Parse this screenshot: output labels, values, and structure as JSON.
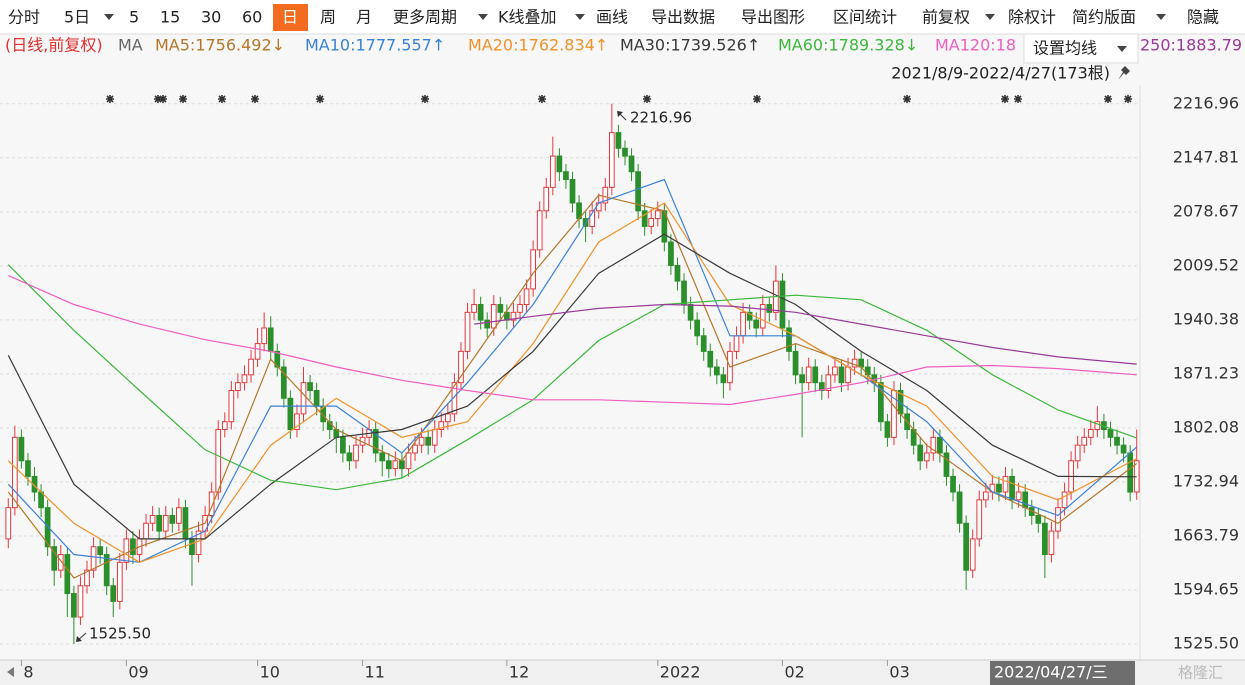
{
  "toolbar": [
    "分时",
    "5日",
    "5",
    "15",
    "30",
    "60",
    "日",
    "周",
    "月",
    "更多周期",
    "K线叠加",
    "画线",
    "导出数据",
    "导出图形",
    "区间统计",
    "前复权",
    "除权计",
    "简约版面",
    "隐藏"
  ],
  "menu": {
    "settings": "设置均线"
  },
  "watermark": "格隆汇",
  "chart_data": {
    "type": "candlestick",
    "period_label": "(日线,前复权)",
    "ma_label": "MA",
    "range_label": "2021/8/9-2022/4/27(173根)",
    "cursor_label": "2022/04/27/三",
    "annotations": [
      {
        "text": "2216.96"
      },
      {
        "text": "1525.50"
      }
    ],
    "up_color": "#e5383d",
    "down_color": "#2b8f2b",
    "xlim": [
      -0.5,
      172.5
    ],
    "xticks": [
      {
        "value": 2,
        "label": "8"
      },
      {
        "value": 18,
        "label": "09"
      },
      {
        "value": 38,
        "label": "10"
      },
      {
        "value": 54,
        "label": "11"
      },
      {
        "value": 76,
        "label": "12"
      },
      {
        "value": 99,
        "label": "2022"
      },
      {
        "value": 118,
        "label": "02"
      },
      {
        "value": 134,
        "label": "03"
      }
    ],
    "ylim": [
      1505,
      2241
    ],
    "yticks": [
      2216.96,
      2147.81,
      2078.67,
      2009.52,
      1940.38,
      1871.23,
      1802.08,
      1732.94,
      1663.79,
      1594.65,
      {
        "value": 1525.5,
        "label": "1525.50"
      }
    ],
    "grid": true,
    "open": [
      1660,
      1700,
      1790,
      1760,
      1740,
      1720,
      1700,
      1650,
      1620,
      1640,
      1590,
      1560,
      1600,
      1620,
      1650,
      1640,
      1600,
      1580,
      1630,
      1660,
      1640,
      1660,
      1680,
      1690,
      1670,
      1690,
      1680,
      1700,
      1660,
      1640,
      1670,
      1690,
      1720,
      1800,
      1810,
      1850,
      1860,
      1870,
      1890,
      1910,
      1930,
      1900,
      1880,
      1840,
      1800,
      1820,
      1860,
      1850,
      1830,
      1810,
      1800,
      1790,
      1770,
      1760,
      1780,
      1790,
      1800,
      1770,
      1760,
      1750,
      1760,
      1750,
      1770,
      1780,
      1790,
      1780,
      1800,
      1810,
      1820,
      1860,
      1900,
      1950,
      1960,
      1940,
      1930,
      1960,
      1950,
      1940,
      1950,
      1960,
      1980,
      2030,
      2080,
      2110,
      2150,
      2130,
      2120,
      2090,
      2070,
      2060,
      2080,
      2090,
      2110,
      2180,
      2160,
      2150,
      2130,
      2080,
      2060,
      2070,
      2080,
      2040,
      2010,
      1990,
      1960,
      1940,
      1920,
      1900,
      1880,
      1870,
      1860,
      1900,
      1920,
      1950,
      1940,
      1930,
      1960,
      1950,
      1990,
      1930,
      1900,
      1870,
      1860,
      1880,
      1860,
      1850,
      1870,
      1880,
      1860,
      1880,
      1890,
      1880,
      1870,
      1860,
      1810,
      1790,
      1850,
      1820,
      1800,
      1780,
      1760,
      1770,
      1790,
      1770,
      1740,
      1720,
      1680,
      1620,
      1660,
      1710,
      1720,
      1730,
      1720,
      1740,
      1710,
      1720,
      1700,
      1690,
      1680,
      1640,
      1670,
      1700,
      1720,
      1760,
      1780,
      1790,
      1800,
      1810,
      1800,
      1790,
      1780,
      1770,
      1720
    ],
    "high": [
      1712,
      1805,
      1800,
      1770,
      1752,
      1730,
      1710,
      1660,
      1652,
      1650,
      1600,
      1612,
      1632,
      1662,
      1660,
      1650,
      1610,
      1642,
      1672,
      1670,
      1672,
      1692,
      1702,
      1700,
      1702,
      1700,
      1712,
      1710,
      1670,
      1682,
      1702,
      1732,
      1812,
      1822,
      1862,
      1872,
      1882,
      1902,
      1930,
      1950,
      1945,
      1910,
      1890,
      1850,
      1832,
      1880,
      1870,
      1860,
      1840,
      1820,
      1810,
      1800,
      1780,
      1792,
      1802,
      1812,
      1810,
      1780,
      1770,
      1772,
      1770,
      1782,
      1792,
      1802,
      1800,
      1812,
      1822,
      1832,
      1872,
      1912,
      1962,
      1980,
      1970,
      1950,
      1972,
      1970,
      1960,
      1962,
      1972,
      1992,
      2042,
      2092,
      2122,
      2175,
      2160,
      2140,
      2130,
      2100,
      2080,
      2092,
      2102,
      2122,
      2216.96,
      2190,
      2170,
      2160,
      2140,
      2090,
      2082,
      2092,
      2090,
      2050,
      2020,
      2000,
      1970,
      1950,
      1930,
      1910,
      1890,
      1880,
      1912,
      1932,
      1962,
      1960,
      1950,
      1972,
      1970,
      2010,
      2000,
      1940,
      1910,
      1880,
      1892,
      1890,
      1870,
      1882,
      1892,
      1890,
      1892,
      1902,
      1900,
      1890,
      1880,
      1870,
      1820,
      1862,
      1860,
      1830,
      1810,
      1790,
      1782,
      1802,
      1800,
      1780,
      1750,
      1730,
      1690,
      1672,
      1722,
      1732,
      1742,
      1740,
      1752,
      1750,
      1732,
      1730,
      1710,
      1700,
      1690,
      1682,
      1712,
      1732,
      1772,
      1792,
      1802,
      1812,
      1830,
      1820,
      1810,
      1800,
      1790,
      1780,
      1800
    ],
    "low": [
      1648,
      1690,
      1750,
      1728,
      1708,
      1688,
      1638,
      1600,
      1610,
      1560,
      1525.5,
      1550,
      1590,
      1610,
      1628,
      1588,
      1560,
      1570,
      1620,
      1628,
      1630,
      1650,
      1670,
      1658,
      1660,
      1668,
      1670,
      1648,
      1600,
      1630,
      1660,
      1680,
      1710,
      1790,
      1800,
      1840,
      1850,
      1860,
      1880,
      1900,
      1888,
      1868,
      1828,
      1788,
      1790,
      1810,
      1838,
      1818,
      1798,
      1788,
      1770,
      1758,
      1748,
      1750,
      1770,
      1780,
      1758,
      1740,
      1738,
      1740,
      1738,
      1740,
      1760,
      1770,
      1768,
      1770,
      1790,
      1800,
      1810,
      1850,
      1890,
      1940,
      1928,
      1918,
      1920,
      1938,
      1928,
      1930,
      1940,
      1950,
      1970,
      2020,
      2070,
      2100,
      2118,
      2108,
      2078,
      2058,
      2040,
      2050,
      2070,
      2080,
      2100,
      2148,
      2138,
      2118,
      2068,
      2048,
      2050,
      2060,
      2028,
      1998,
      1978,
      1948,
      1928,
      1908,
      1888,
      1868,
      1858,
      1840,
      1850,
      1890,
      1910,
      1928,
      1918,
      1920,
      1938,
      1940,
      1918,
      1888,
      1858,
      1790,
      1850,
      1848,
      1838,
      1840,
      1860,
      1848,
      1850,
      1870,
      1868,
      1858,
      1848,
      1798,
      1778,
      1780,
      1808,
      1788,
      1768,
      1748,
      1750,
      1760,
      1758,
      1728,
      1708,
      1668,
      1595,
      1610,
      1650,
      1700,
      1710,
      1708,
      1710,
      1698,
      1700,
      1688,
      1678,
      1668,
      1610,
      1630,
      1660,
      1690,
      1710,
      1750,
      1770,
      1780,
      1790,
      1788,
      1778,
      1768,
      1758,
      1708,
      1710
    ],
    "close": [
      1700,
      1790,
      1760,
      1740,
      1720,
      1700,
      1650,
      1620,
      1640,
      1590,
      1560,
      1600,
      1620,
      1650,
      1640,
      1600,
      1580,
      1630,
      1660,
      1640,
      1660,
      1680,
      1690,
      1670,
      1690,
      1680,
      1700,
      1660,
      1640,
      1670,
      1690,
      1720,
      1800,
      1810,
      1850,
      1860,
      1870,
      1890,
      1910,
      1930,
      1900,
      1880,
      1840,
      1800,
      1820,
      1860,
      1850,
      1830,
      1810,
      1800,
      1790,
      1770,
      1760,
      1780,
      1790,
      1800,
      1770,
      1760,
      1750,
      1760,
      1750,
      1770,
      1780,
      1790,
      1780,
      1800,
      1810,
      1820,
      1860,
      1900,
      1950,
      1960,
      1940,
      1930,
      1960,
      1950,
      1940,
      1950,
      1960,
      1980,
      2030,
      2080,
      2110,
      2150,
      2130,
      2120,
      2090,
      2070,
      2060,
      2080,
      2090,
      2110,
      2180,
      2160,
      2150,
      2130,
      2080,
      2060,
      2070,
      2080,
      2040,
      2010,
      1990,
      1960,
      1940,
      1920,
      1900,
      1880,
      1870,
      1860,
      1900,
      1920,
      1950,
      1940,
      1930,
      1960,
      1950,
      1990,
      1930,
      1900,
      1870,
      1860,
      1880,
      1860,
      1850,
      1870,
      1880,
      1860,
      1880,
      1890,
      1880,
      1870,
      1860,
      1810,
      1790,
      1850,
      1820,
      1800,
      1780,
      1760,
      1770,
      1790,
      1770,
      1740,
      1720,
      1680,
      1620,
      1660,
      1710,
      1720,
      1730,
      1720,
      1740,
      1710,
      1720,
      1700,
      1690,
      1680,
      1640,
      1670,
      1700,
      1720,
      1760,
      1780,
      1790,
      1800,
      1810,
      1800,
      1790,
      1780,
      1770,
      1720,
      1760
    ],
    "series": [
      {
        "name": "MA5:1756.492↓",
        "color": "#b5782a",
        "x": [
          0,
          10,
          20,
          30,
          40,
          50,
          60,
          70,
          80,
          90,
          100,
          110,
          120,
          130,
          140,
          150,
          160,
          172
        ],
        "values": [
          1720,
          1610,
          1650,
          1680,
          1890,
          1800,
          1760,
          1880,
          2000,
          2100,
          2080,
          1880,
          1910,
          1880,
          1780,
          1720,
          1680,
          1756.492
        ]
      },
      {
        "name": "MA10:1777.557↑",
        "color": "#3b82d6",
        "x": [
          0,
          10,
          20,
          30,
          40,
          50,
          60,
          70,
          80,
          90,
          100,
          110,
          120,
          130,
          140,
          150,
          160,
          172
        ],
        "values": [
          1730,
          1640,
          1630,
          1670,
          1830,
          1830,
          1770,
          1860,
          1960,
          2090,
          2120,
          1920,
          1920,
          1870,
          1810,
          1720,
          1690,
          1777.557
        ]
      },
      {
        "name": "MA20:1762.834↑",
        "color": "#f0922b",
        "x": [
          0,
          10,
          20,
          30,
          40,
          50,
          60,
          70,
          80,
          90,
          100,
          110,
          120,
          130,
          140,
          150,
          160,
          172
        ],
        "values": [
          1760,
          1680,
          1630,
          1660,
          1780,
          1840,
          1790,
          1810,
          1910,
          2040,
          2090,
          1960,
          1920,
          1870,
          1830,
          1740,
          1710,
          1762.834
        ]
      },
      {
        "name": "MA30:1739.526↑",
        "color": "#3a3a3a",
        "x": [
          0,
          10,
          20,
          30,
          40,
          50,
          60,
          70,
          80,
          90,
          100,
          110,
          120,
          130,
          140,
          150,
          160,
          172
        ],
        "values": [
          1895,
          1730,
          1660,
          1660,
          1730,
          1790,
          1800,
          1830,
          1900,
          2000,
          2050,
          2000,
          1960,
          1900,
          1850,
          1780,
          1740,
          1739.526
        ]
      },
      {
        "name": "MA60:1789.328↓",
        "color": "#3cb83c",
        "x": [
          0,
          10,
          20,
          30,
          40,
          50,
          60,
          70,
          80,
          90,
          100,
          110,
          120,
          130,
          140,
          150,
          160,
          172
        ],
        "values": [
          2011,
          1927,
          1850,
          1774,
          1735,
          1723,
          1738,
          1787,
          1838,
          1914,
          1960,
          1966,
          1972,
          1966,
          1927,
          1870,
          1825,
          1789.328
        ]
      },
      {
        "name": "MA120:18",
        "color": "#ee5fc0",
        "x": [
          0,
          10,
          20,
          30,
          40,
          50,
          60,
          70,
          80,
          90,
          100,
          110,
          120,
          130,
          140,
          150,
          160,
          172
        ],
        "values": [
          1997,
          1960,
          1935,
          1915,
          1900,
          1880,
          1863,
          1850,
          1838,
          1838,
          1835,
          1832,
          1845,
          1860,
          1880,
          1882,
          1878,
          1870
        ]
      },
      {
        "name": "250:1883.79",
        "color": "#9b3a9b",
        "x": [
          71,
          80,
          90,
          100,
          110,
          120,
          130,
          140,
          150,
          160,
          172
        ],
        "values": [
          1935,
          1945,
          1955,
          1960,
          1958,
          1950,
          1935,
          1920,
          1905,
          1893,
          1883.79
        ]
      }
    ]
  }
}
